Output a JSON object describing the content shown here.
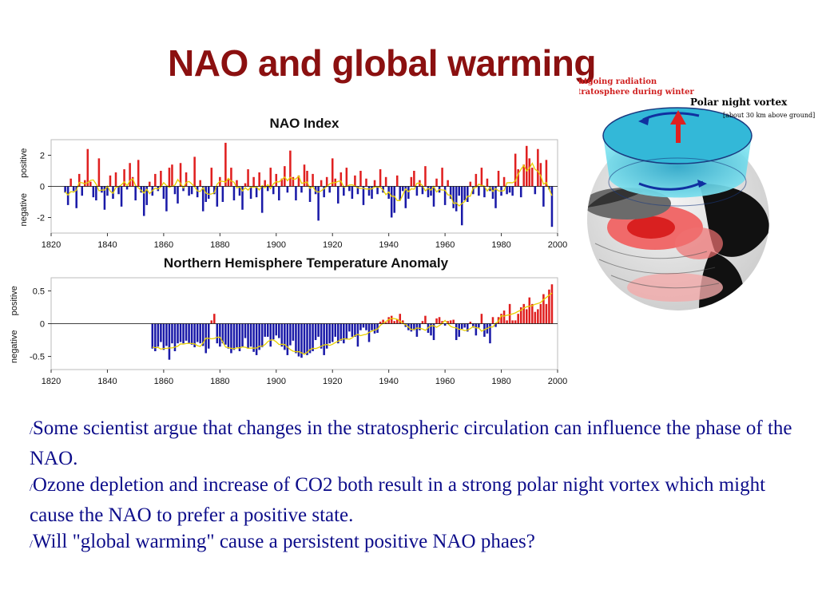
{
  "title": "NAO and global warming",
  "globe": {
    "radiation_line1": "Outgoing radiation",
    "radiation_line2": "cools the stratosphere during winter",
    "vortex_label": "Polar night vortex",
    "vortex_sublabel": "[about 30 km above ground]"
  },
  "bullets": [
    {
      "marker": "/",
      "text": "Some scientist argue that changes in the stratospheric circulation can influence the phase of the NAO."
    },
    {
      "marker": "/",
      "text": "Ozone depletion and increase of CO2 both result in a strong polar night vortex which might cause the NAO to prefer a positive state."
    },
    {
      "marker": "/",
      "text": "Will \"global warming\" cause a persistent positive NAO phaes?"
    }
  ],
  "colors": {
    "positive": "#e02020",
    "negative": "#1a1aa8",
    "smooth": "#e8d000",
    "title": "#8b1010",
    "text": "#0d0d8a"
  },
  "chart_data": [
    {
      "type": "bar",
      "title": "NAO Index",
      "xlabel": "",
      "ylabel_negative": "negative",
      "ylabel_positive": "positive",
      "xlim": [
        1820,
        2000
      ],
      "ylim": [
        -3,
        3
      ],
      "xticks": [
        1820,
        1840,
        1860,
        1880,
        1900,
        1920,
        1940,
        1960,
        1980,
        2000
      ],
      "yticks": [
        2,
        0,
        -2
      ],
      "ytick_labels": [
        "2",
        "0",
        "-2"
      ],
      "x": [
        1825,
        1826,
        1827,
        1828,
        1829,
        1830,
        1831,
        1832,
        1833,
        1834,
        1835,
        1836,
        1837,
        1838,
        1839,
        1840,
        1841,
        1842,
        1843,
        1844,
        1845,
        1846,
        1847,
        1848,
        1849,
        1850,
        1851,
        1852,
        1853,
        1854,
        1855,
        1856,
        1857,
        1858,
        1859,
        1860,
        1861,
        1862,
        1863,
        1864,
        1865,
        1866,
        1867,
        1868,
        1869,
        1870,
        1871,
        1872,
        1873,
        1874,
        1875,
        1876,
        1877,
        1878,
        1879,
        1880,
        1881,
        1882,
        1883,
        1884,
        1885,
        1886,
        1887,
        1888,
        1889,
        1890,
        1891,
        1892,
        1893,
        1894,
        1895,
        1896,
        1897,
        1898,
        1899,
        1900,
        1901,
        1902,
        1903,
        1904,
        1905,
        1906,
        1907,
        1908,
        1909,
        1910,
        1911,
        1912,
        1913,
        1914,
        1915,
        1916,
        1917,
        1918,
        1919,
        1920,
        1921,
        1922,
        1923,
        1924,
        1925,
        1926,
        1927,
        1928,
        1929,
        1930,
        1931,
        1932,
        1933,
        1934,
        1935,
        1936,
        1937,
        1938,
        1939,
        1940,
        1941,
        1942,
        1943,
        1944,
        1945,
        1946,
        1947,
        1948,
        1949,
        1950,
        1951,
        1952,
        1953,
        1954,
        1955,
        1956,
        1957,
        1958,
        1959,
        1960,
        1961,
        1962,
        1963,
        1964,
        1965,
        1966,
        1967,
        1968,
        1969,
        1970,
        1971,
        1972,
        1973,
        1974,
        1975,
        1976,
        1977,
        1978,
        1979,
        1980,
        1981,
        1982,
        1983,
        1984,
        1985,
        1986,
        1987,
        1988,
        1989,
        1990,
        1991,
        1992,
        1993,
        1994,
        1995,
        1996,
        1997,
        1998
      ],
      "values": [
        -0.4,
        -1.2,
        0.5,
        -0.3,
        -1.4,
        0.8,
        -0.6,
        0.4,
        2.4,
        0.3,
        -0.7,
        -0.9,
        1.8,
        -0.4,
        -1.5,
        -0.6,
        0.7,
        -0.8,
        0.9,
        -0.5,
        -1.3,
        1.1,
        -0.2,
        1.5,
        0.6,
        -0.9,
        1.7,
        -0.4,
        -1.9,
        -1.2,
        0.3,
        -0.6,
        0.8,
        -0.3,
        1.0,
        -0.8,
        -1.6,
        1.2,
        1.4,
        -0.5,
        -1.1,
        1.5,
        -0.3,
        0.9,
        -0.6,
        -0.5,
        1.9,
        -0.7,
        0.4,
        -1.6,
        -1.0,
        -0.8,
        1.2,
        -0.5,
        -1.3,
        0.6,
        -1.0,
        2.8,
        0.5,
        1.2,
        -0.9,
        0.4,
        -0.6,
        -1.5,
        0.2,
        1.1,
        -0.8,
        0.6,
        -0.7,
        0.9,
        -1.7,
        0.4,
        -0.3,
        1.2,
        -0.5,
        0.8,
        -0.9,
        0.5,
        1.3,
        -0.4,
        2.3,
        0.6,
        -0.9,
        0.7,
        -0.4,
        1.4,
        1.0,
        -1.0,
        0.8,
        -0.5,
        -2.2,
        0.4,
        -0.7,
        0.6,
        -0.4,
        1.8,
        0.5,
        -1.1,
        0.9,
        -0.6,
        1.2,
        -0.3,
        -0.8,
        0.7,
        -0.5,
        1.0,
        -1.2,
        0.5,
        -0.6,
        -0.8,
        0.4,
        -0.5,
        1.1,
        -0.4,
        0.6,
        -0.8,
        -2.0,
        -1.7,
        0.7,
        -0.9,
        -0.3,
        -1.4,
        -0.8,
        0.6,
        1.0,
        -0.6,
        0.4,
        -0.5,
        1.3,
        -0.7,
        -0.6,
        -1.3,
        0.5,
        -0.4,
        1.2,
        -1.2,
        0.4,
        -0.8,
        -1.4,
        -1.6,
        -0.6,
        -2.5,
        -0.9,
        -1.0,
        0.3,
        -0.5,
        0.8,
        -0.6,
        1.2,
        -0.7,
        0.5,
        -0.3,
        -0.8,
        -1.4,
        1.0,
        -0.6,
        0.6,
        -0.5,
        -0.4,
        -0.6,
        2.1,
        1.1,
        -0.7,
        1.4,
        2.6,
        1.8,
        1.2,
        -0.5,
        2.4,
        1.5,
        -1.3,
        1.7,
        -0.2,
        -2.6
      ],
      "smooth_curve": true
    },
    {
      "type": "bar",
      "title": "Northern Hemisphere Temperature Anomaly",
      "xlabel": "",
      "ylabel_negative": "negative",
      "ylabel_positive": "positive",
      "xlim": [
        1820,
        2000
      ],
      "ylim": [
        -0.7,
        0.7
      ],
      "xticks": [
        1820,
        1840,
        1860,
        1880,
        1900,
        1920,
        1940,
        1960,
        1980,
        2000
      ],
      "yticks": [
        0.5,
        0,
        -0.5
      ],
      "ytick_labels": [
        "0.5",
        "0",
        "-0.5"
      ],
      "x": [
        1856,
        1857,
        1858,
        1859,
        1860,
        1861,
        1862,
        1863,
        1864,
        1865,
        1866,
        1867,
        1868,
        1869,
        1870,
        1871,
        1872,
        1873,
        1874,
        1875,
        1876,
        1877,
        1878,
        1879,
        1880,
        1881,
        1882,
        1883,
        1884,
        1885,
        1886,
        1887,
        1888,
        1889,
        1890,
        1891,
        1892,
        1893,
        1894,
        1895,
        1896,
        1897,
        1898,
        1899,
        1900,
        1901,
        1902,
        1903,
        1904,
        1905,
        1906,
        1907,
        1908,
        1909,
        1910,
        1911,
        1912,
        1913,
        1914,
        1915,
        1916,
        1917,
        1918,
        1919,
        1920,
        1921,
        1922,
        1923,
        1924,
        1925,
        1926,
        1927,
        1928,
        1929,
        1930,
        1931,
        1932,
        1933,
        1934,
        1935,
        1936,
        1937,
        1938,
        1939,
        1940,
        1941,
        1942,
        1943,
        1944,
        1945,
        1946,
        1947,
        1948,
        1949,
        1950,
        1951,
        1952,
        1953,
        1954,
        1955,
        1956,
        1957,
        1958,
        1959,
        1960,
        1961,
        1962,
        1963,
        1964,
        1965,
        1966,
        1967,
        1968,
        1969,
        1970,
        1971,
        1972,
        1973,
        1974,
        1975,
        1976,
        1977,
        1978,
        1979,
        1980,
        1981,
        1982,
        1983,
        1984,
        1985,
        1986,
        1987,
        1988,
        1989,
        1990,
        1991,
        1992,
        1993,
        1994,
        1995,
        1996,
        1997,
        1998
      ],
      "values": [
        -0.38,
        -0.42,
        -0.35,
        -0.28,
        -0.4,
        -0.34,
        -0.55,
        -0.3,
        -0.42,
        -0.3,
        -0.28,
        -0.3,
        -0.26,
        -0.3,
        -0.32,
        -0.36,
        -0.28,
        -0.3,
        -0.34,
        -0.45,
        -0.38,
        0.05,
        0.15,
        -0.3,
        -0.35,
        -0.3,
        -0.32,
        -0.38,
        -0.45,
        -0.4,
        -0.36,
        -0.42,
        -0.35,
        -0.22,
        -0.38,
        -0.35,
        -0.43,
        -0.48,
        -0.4,
        -0.36,
        -0.2,
        -0.2,
        -0.35,
        -0.24,
        -0.18,
        -0.22,
        -0.35,
        -0.4,
        -0.48,
        -0.33,
        -0.26,
        -0.45,
        -0.5,
        -0.52,
        -0.45,
        -0.48,
        -0.45,
        -0.42,
        -0.25,
        -0.2,
        -0.38,
        -0.48,
        -0.38,
        -0.3,
        -0.28,
        -0.2,
        -0.3,
        -0.26,
        -0.3,
        -0.24,
        -0.12,
        -0.2,
        -0.2,
        -0.35,
        -0.1,
        -0.06,
        -0.1,
        -0.28,
        -0.1,
        -0.15,
        -0.14,
        0.03,
        0.06,
        0.02,
        0.1,
        0.12,
        0.04,
        0.06,
        0.15,
        0.05,
        -0.05,
        -0.1,
        -0.12,
        -0.1,
        -0.2,
        -0.1,
        0.04,
        0.12,
        -0.14,
        -0.18,
        -0.25,
        0.08,
        0.1,
        0.04,
        -0.03,
        0.04,
        0.05,
        0.06,
        -0.25,
        -0.2,
        -0.08,
        -0.06,
        -0.12,
        0.03,
        -0.06,
        -0.18,
        -0.06,
        0.15,
        -0.2,
        -0.15,
        -0.3,
        0.1,
        -0.05,
        0.1,
        0.15,
        0.2,
        0.05,
        0.3,
        0.05,
        0.05,
        0.15,
        0.25,
        0.3,
        0.22,
        0.4,
        0.3,
        0.18,
        0.22,
        0.3,
        0.45,
        0.3,
        0.52,
        0.6
      ]
    }
  ]
}
